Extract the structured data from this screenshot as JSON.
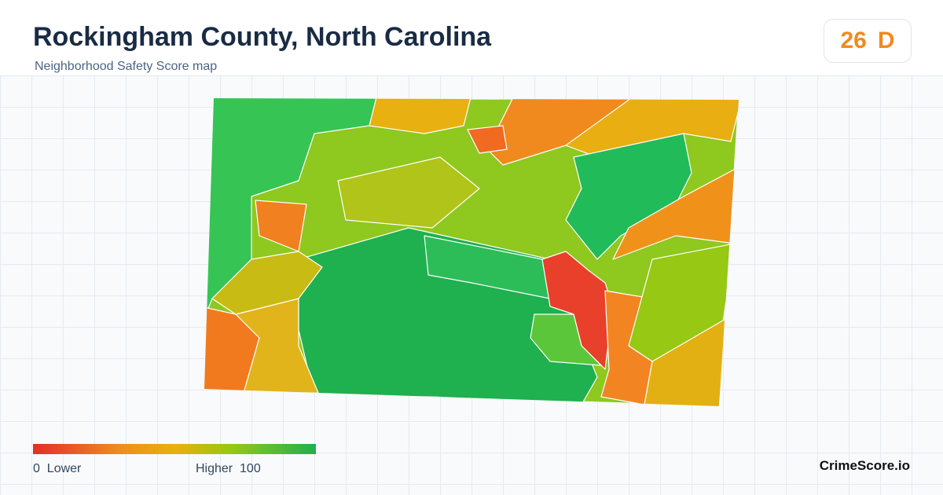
{
  "header": {
    "title": "Rockingham County, North Carolina",
    "subtitle": "Neighborhood Safety Score map"
  },
  "score": {
    "value": 26,
    "grade": "D"
  },
  "legend": {
    "min": 0,
    "min_label": "Lower",
    "max_label": "Higher",
    "max": 100
  },
  "brand": "CrimeScore.io"
}
